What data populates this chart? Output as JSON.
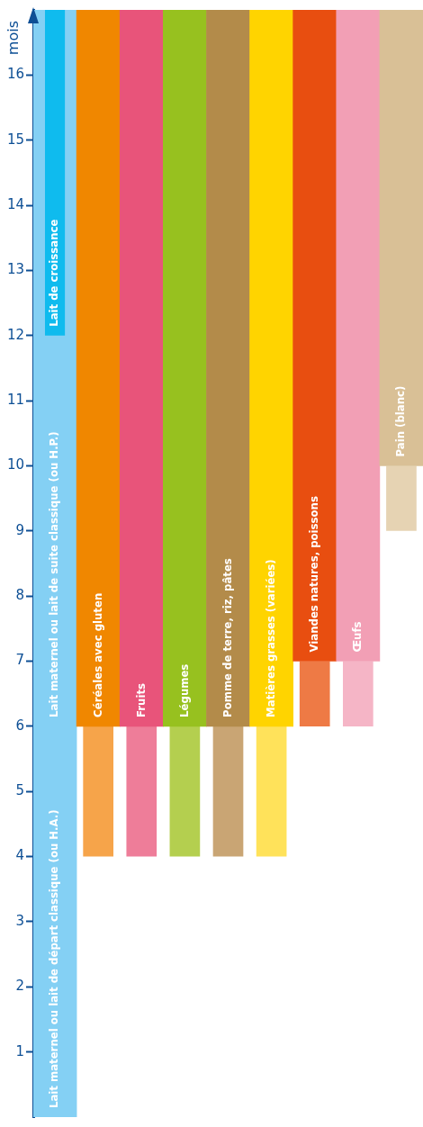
{
  "chart_data": {
    "type": "bar",
    "ylabel": "mois",
    "categories": [
      null,
      "Céréales avec gluten",
      "Fruits",
      "Légumes",
      "Pomme de terre, riz, pâtes",
      "Matières grasses (variées)",
      "Viandes natures, poissons",
      "Œufs",
      "Pain (blanc)"
    ],
    "series": [
      {
        "name": "Lait maternel ou lait de départ classique (ou H.A.)",
        "color": "#84d0f4",
        "values": [
          6,
          null,
          null,
          null,
          null,
          null,
          null,
          null,
          null
        ],
        "base": [
          0,
          null,
          null,
          null,
          null,
          null,
          null,
          null,
          null
        ]
      },
      {
        "name": "Lait maternel ou lait de suite classique (ou H.P.)",
        "color": "#84d0f4",
        "values": [
          11,
          null,
          null,
          null,
          null,
          null,
          null,
          null,
          null
        ],
        "base": [
          6,
          null,
          null,
          null,
          null,
          null,
          null,
          null,
          null
        ]
      },
      {
        "name": "Lait de croissance",
        "color": "#0fbbee",
        "values": [
          5,
          null,
          null,
          null,
          null,
          null,
          null,
          null,
          null
        ],
        "base": [
          12,
          null,
          null,
          null,
          null,
          null,
          null,
          null,
          null
        ]
      },
      {
        "colors": [
          "#84d0f4",
          "#f6a44a",
          "#ee7d99",
          "#b4cf4f",
          "#c9a574",
          "#ffe25a",
          "#ee7a45",
          "#f5b5c6",
          "#e6d3b3"
        ],
        "values": [
          null,
          2,
          2,
          2,
          2,
          2,
          1,
          1,
          1
        ],
        "base": [
          null,
          4,
          4,
          4,
          4,
          4,
          6,
          6,
          9
        ]
      },
      {
        "colors": [
          "#84d0f4",
          "#f08700",
          "#e8547a",
          "#97c11f",
          "#b38b4a",
          "#ffd400",
          "#e84e10",
          "#f29fb5",
          "#d9c096"
        ],
        "values": [
          null,
          11,
          11,
          11,
          11,
          11,
          10,
          10,
          7
        ],
        "base": [
          null,
          6,
          6,
          6,
          6,
          6,
          7,
          7,
          10
        ]
      }
    ],
    "ylim": [
      0,
      17
    ],
    "yticks": [
      1,
      2,
      3,
      4,
      5,
      6,
      7,
      8,
      9,
      10,
      11,
      12,
      13,
      14,
      15,
      16
    ],
    "grid": false,
    "legend": false,
    "tick_labels": "y"
  }
}
